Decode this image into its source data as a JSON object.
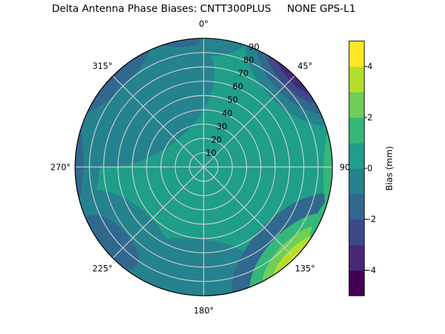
{
  "title": "Delta Antenna Phase Biases: CNTT300PLUS     NONE GPS-L1",
  "background": "#ffffff",
  "polar_axes": {
    "angular_labels": [
      "0°",
      "45°",
      "90°",
      "135°",
      "180°",
      "225°",
      "270°",
      "315°"
    ],
    "radial_labels": [
      "10",
      "20",
      "30",
      "40",
      "50",
      "60",
      "70",
      "80",
      "90"
    ]
  },
  "colorbar": {
    "label": "Bias (mm)",
    "min": -5,
    "max": 5,
    "tick_values": [
      4,
      2,
      0,
      -2,
      -4
    ],
    "tick_labels": [
      "4",
      "2",
      "0",
      "−2",
      "−4"
    ],
    "band_colors": [
      "#440154",
      "#482878",
      "#3e4989",
      "#31688e",
      "#26828e",
      "#1f9e89",
      "#35b779",
      "#6ece58",
      "#b5de2b",
      "#fde725"
    ]
  },
  "palette": {
    "teal": "#1f9e89",
    "tealDark": "#26828e",
    "blueTeal": "#31688e",
    "blue": "#3e4989",
    "indigo": "#482878",
    "purple": "#440154",
    "green": "#35b779",
    "lightGreen": "#6ece58",
    "yellowGreen": "#b5de2b",
    "yellow": "#fde725"
  },
  "chart_data": {
    "type": "heatmap",
    "projection": "polar_contour",
    "title": "Delta Antenna Phase Biases: CNTT300PLUS     NONE GPS-L1",
    "colorbar_label": "Bias (mm)",
    "colormap": "viridis",
    "clim": [
      -5,
      5
    ],
    "contour_levels": [
      -5,
      -4,
      -3,
      -2,
      -1,
      0,
      1,
      2,
      3,
      4,
      5
    ],
    "azimuth_deg": [
      0,
      45,
      90,
      135,
      180,
      225,
      270,
      315
    ],
    "zenith_deg": [
      10,
      20,
      30,
      40,
      50,
      60,
      70,
      80,
      90
    ],
    "bias_mm": [
      [
        0.5,
        0.5,
        0.5,
        0.5,
        0.5,
        0.5,
        0.5,
        0.5,
        0.5
      ],
      [
        0.5,
        0.5,
        0.4,
        0.2,
        -0.2,
        -0.8,
        -1.8,
        -3.2,
        -4.6
      ],
      [
        0.5,
        0.5,
        0.5,
        0.6,
        0.8,
        1.2,
        1.6,
        2.2,
        2.6
      ],
      [
        0.5,
        0.5,
        0.5,
        0.8,
        1.0,
        1.6,
        2.4,
        3.6,
        4.7
      ],
      [
        0.5,
        0.4,
        0.3,
        0.1,
        -0.1,
        -0.2,
        -0.2,
        0.0,
        0.2
      ],
      [
        0.5,
        0.4,
        0.2,
        -0.1,
        -0.4,
        -0.7,
        -1.0,
        -0.6,
        -0.2
      ],
      [
        0.5,
        0.4,
        0.2,
        -0.1,
        -0.5,
        -0.9,
        -1.3,
        -1.6,
        -1.8
      ],
      [
        0.5,
        0.4,
        0.2,
        -0.2,
        -0.6,
        -1.1,
        -1.6,
        -1.9,
        -1.6
      ]
    ],
    "notable_features": [
      "Strong negative lobe (to about -4.6 mm, dark purple) at the horizon near azimuth 45°",
      "Strong positive lobe (to about +4.7 mm, bright yellow) at the horizon near azimuth 135°",
      "Moderate positive band (+2 to +3 mm, light green) along the rim near azimuth 90°",
      "Mild negative band (-1 to -2 mm, steel blue) along the rim from azimuth 270° to 315°",
      "Interior mostly +0 to +1 mm (teal)"
    ]
  }
}
